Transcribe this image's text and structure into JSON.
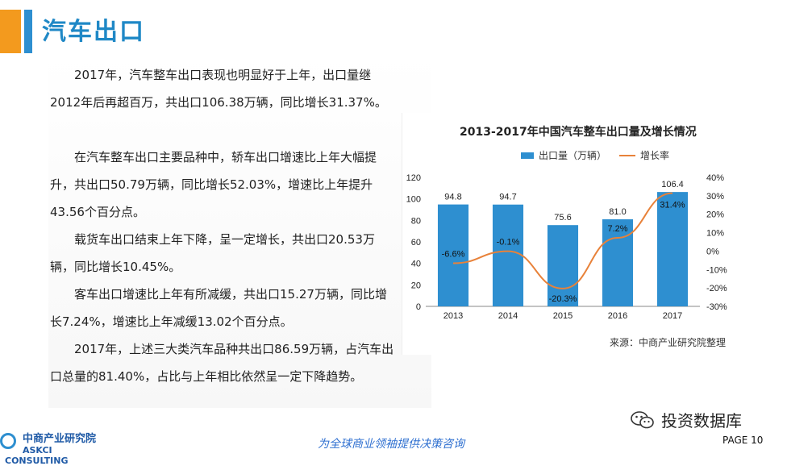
{
  "header": {
    "title": "汽车出口"
  },
  "paragraphs": [
    "2017年，汽车整车出口表现也明显好于上年，出口量继2012年后再超百万，共出口106.38万辆，同比增长31.37%。",
    "在汽车整车出口主要品种中，轿车出口增速比上年大幅提升，共出口50.79万辆，同比增长52.03%，增速比上年提升43.56个百分点。",
    "载货车出口结束上年下降，呈一定增长，共出口20.53万辆，同比增长10.45%。",
    "客车出口增速比上年有所减缓，共出口15.27万辆，同比增长7.24%，增速比上年减缓13.02个百分点。",
    "2017年，上述三大类汽车品种共出口86.59万辆，占汽车出口总量的81.40%，占比与上年相比依然呈一定下降趋势。"
  ],
  "chart_data": {
    "type": "bar",
    "title": "2013-2017年中国汽车整车出口量及增长情况",
    "categories": [
      "2013",
      "2014",
      "2015",
      "2016",
      "2017"
    ],
    "series": [
      {
        "name": "出口量（万辆）",
        "type": "bar",
        "values": [
          94.8,
          94.7,
          75.6,
          81.0,
          106.4
        ],
        "labels": [
          "94.8",
          "94.7",
          "75.6",
          "81.0",
          "106.4"
        ],
        "axis": "left"
      },
      {
        "name": "增长率",
        "type": "line",
        "values": [
          -6.6,
          -0.1,
          -20.3,
          7.2,
          31.4
        ],
        "labels": [
          "-6.6%",
          "-0.1%",
          "-20.3%",
          "7.2%",
          "31.4%"
        ],
        "axis": "right"
      }
    ],
    "ylim_left": [
      0,
      120
    ],
    "left_ticks": [
      "0",
      "20",
      "40",
      "60",
      "80",
      "100",
      "120"
    ],
    "ylim_right": [
      -30,
      40
    ],
    "right_ticks": [
      "-30%",
      "-20%",
      "-10%",
      "0%",
      "10%",
      "20%",
      "30%",
      "40%"
    ],
    "legend_position": "top",
    "grid": false,
    "colors": {
      "bar": "#2e8fd0",
      "line": "#e8823a"
    }
  },
  "source": "来源：中商产业研究院整理",
  "footer": {
    "logo_cn": "中商产业研究院",
    "logo_en": "ASKCI CONSULTING",
    "slogan": "为全球商业领袖提供决策咨询",
    "wechat_label": "投资数据库",
    "wechat_icon": "wechat-icon",
    "page": "PAGE 10"
  }
}
